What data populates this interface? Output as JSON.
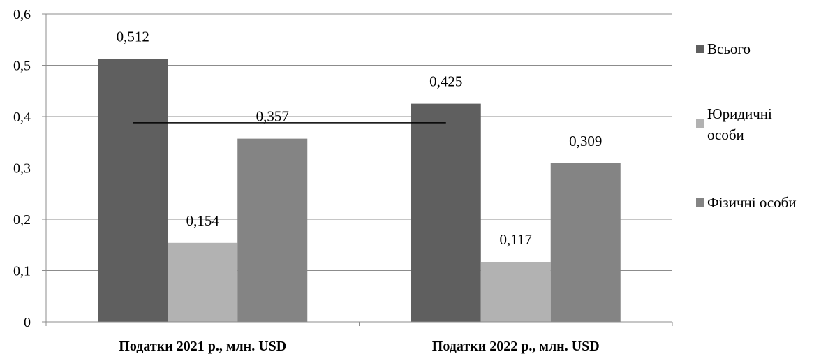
{
  "chart_data": {
    "type": "bar",
    "categories": [
      "Податки 2021 р., млн. USD",
      "Податки 2022 р., млн. USD"
    ],
    "series": [
      {
        "name": "Всього",
        "values": [
          0.512,
          0.425
        ],
        "labels": [
          "0,512",
          "0,425"
        ],
        "color": "#5f5f5f"
      },
      {
        "name": "Юридичні особи",
        "legend_lines": [
          "Юридичні",
          "особи"
        ],
        "values": [
          0.154,
          0.117
        ],
        "labels": [
          "0,154",
          "0,117"
        ],
        "color": "#b2b2b2"
      },
      {
        "name": "Фізичні особи",
        "values": [
          0.357,
          0.309
        ],
        "labels": [
          "0,357",
          "0,309"
        ],
        "color": "#848484"
      }
    ],
    "ylim": [
      0,
      0.6
    ],
    "yticks": [
      0,
      0.1,
      0.2,
      0.3,
      0.4,
      0.5,
      0.6
    ],
    "ytick_labels": [
      "0",
      "0,1",
      "0,2",
      "0,3",
      "0,4",
      "0,5",
      "0,6"
    ],
    "reference_line": {
      "value": 0.388
    },
    "legend_position": "right",
    "grid": true,
    "title": "",
    "xlabel": "",
    "ylabel": ""
  }
}
